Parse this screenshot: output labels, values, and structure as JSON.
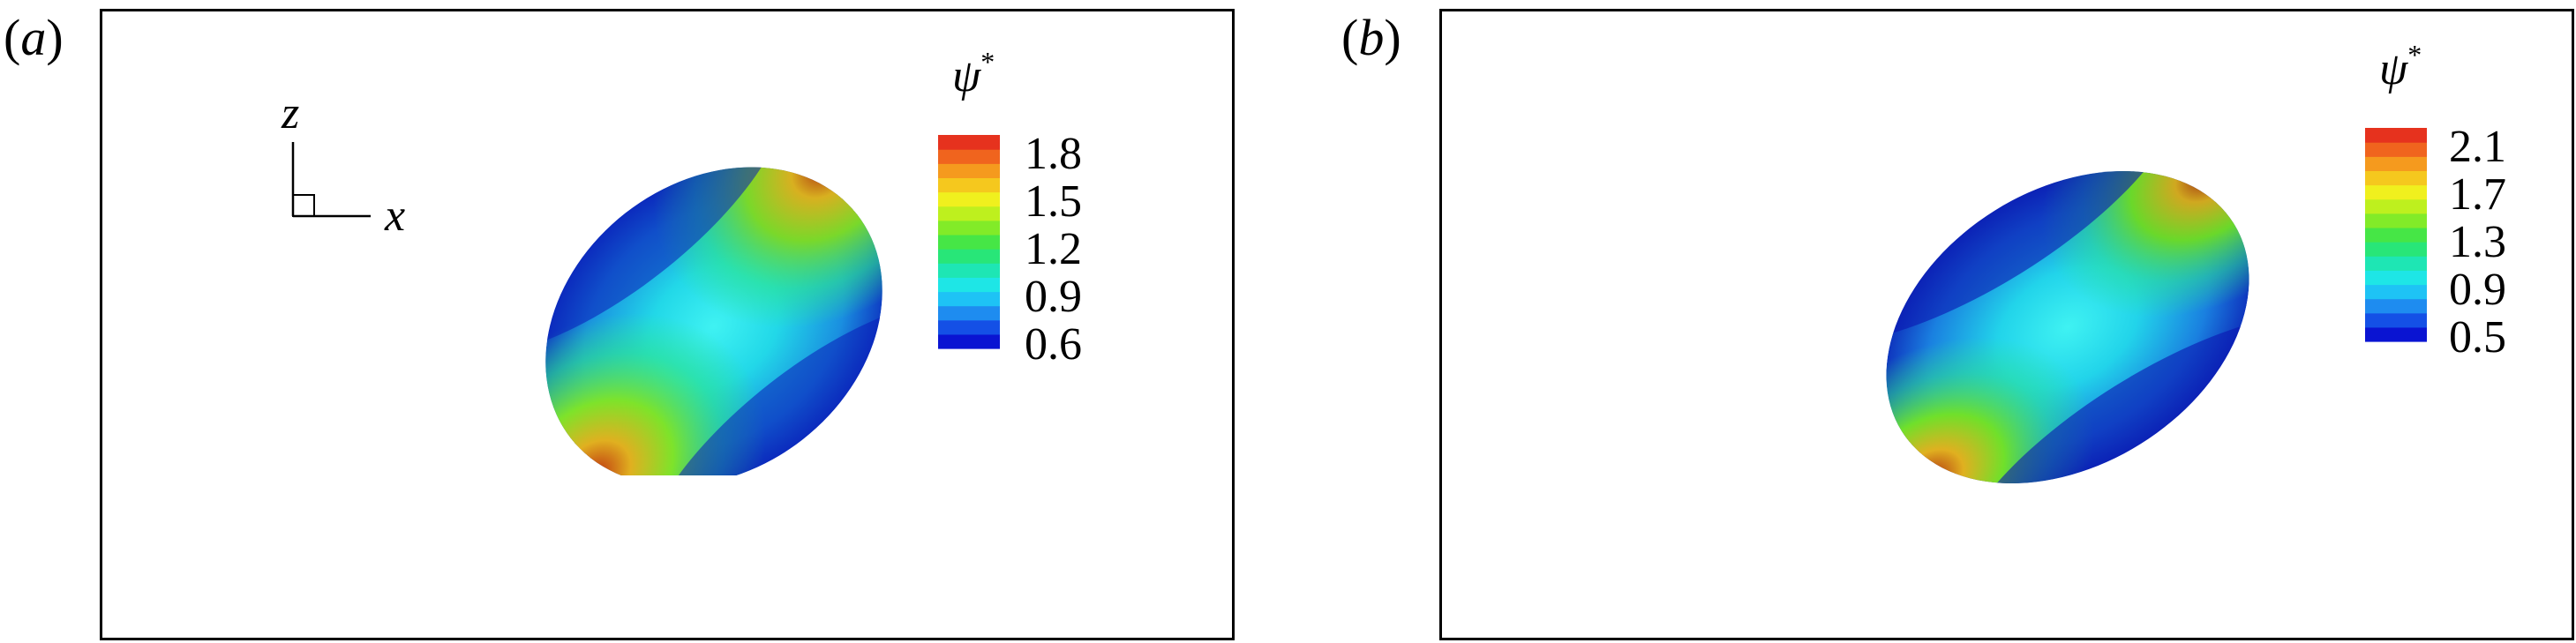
{
  "panels": [
    {
      "id": "a",
      "label_open": "(",
      "label_letter": "a",
      "label_close": ")",
      "colorbar": {
        "symbol": "ψ",
        "superscript": "*",
        "ticks": [
          "1.8",
          "1.5",
          "1.2",
          "0.9",
          "0.6"
        ]
      },
      "axes": {
        "vertical": "z",
        "horizontal": "x"
      }
    },
    {
      "id": "b",
      "label_open": "(",
      "label_letter": "b",
      "label_close": ")",
      "colorbar": {
        "symbol": "ψ",
        "superscript": "*",
        "ticks": [
          "2.1",
          "1.7",
          "1.3",
          "0.9",
          "0.5"
        ]
      }
    }
  ],
  "colormap": [
    "#0a14d2",
    "#1450e6",
    "#1e8cf0",
    "#1ec3f5",
    "#1ee6e6",
    "#1ee6b4",
    "#28e678",
    "#46e646",
    "#82eb28",
    "#bef01e",
    "#f0f01e",
    "#f5c81e",
    "#f59a1e",
    "#f0641e",
    "#e6321e"
  ]
}
